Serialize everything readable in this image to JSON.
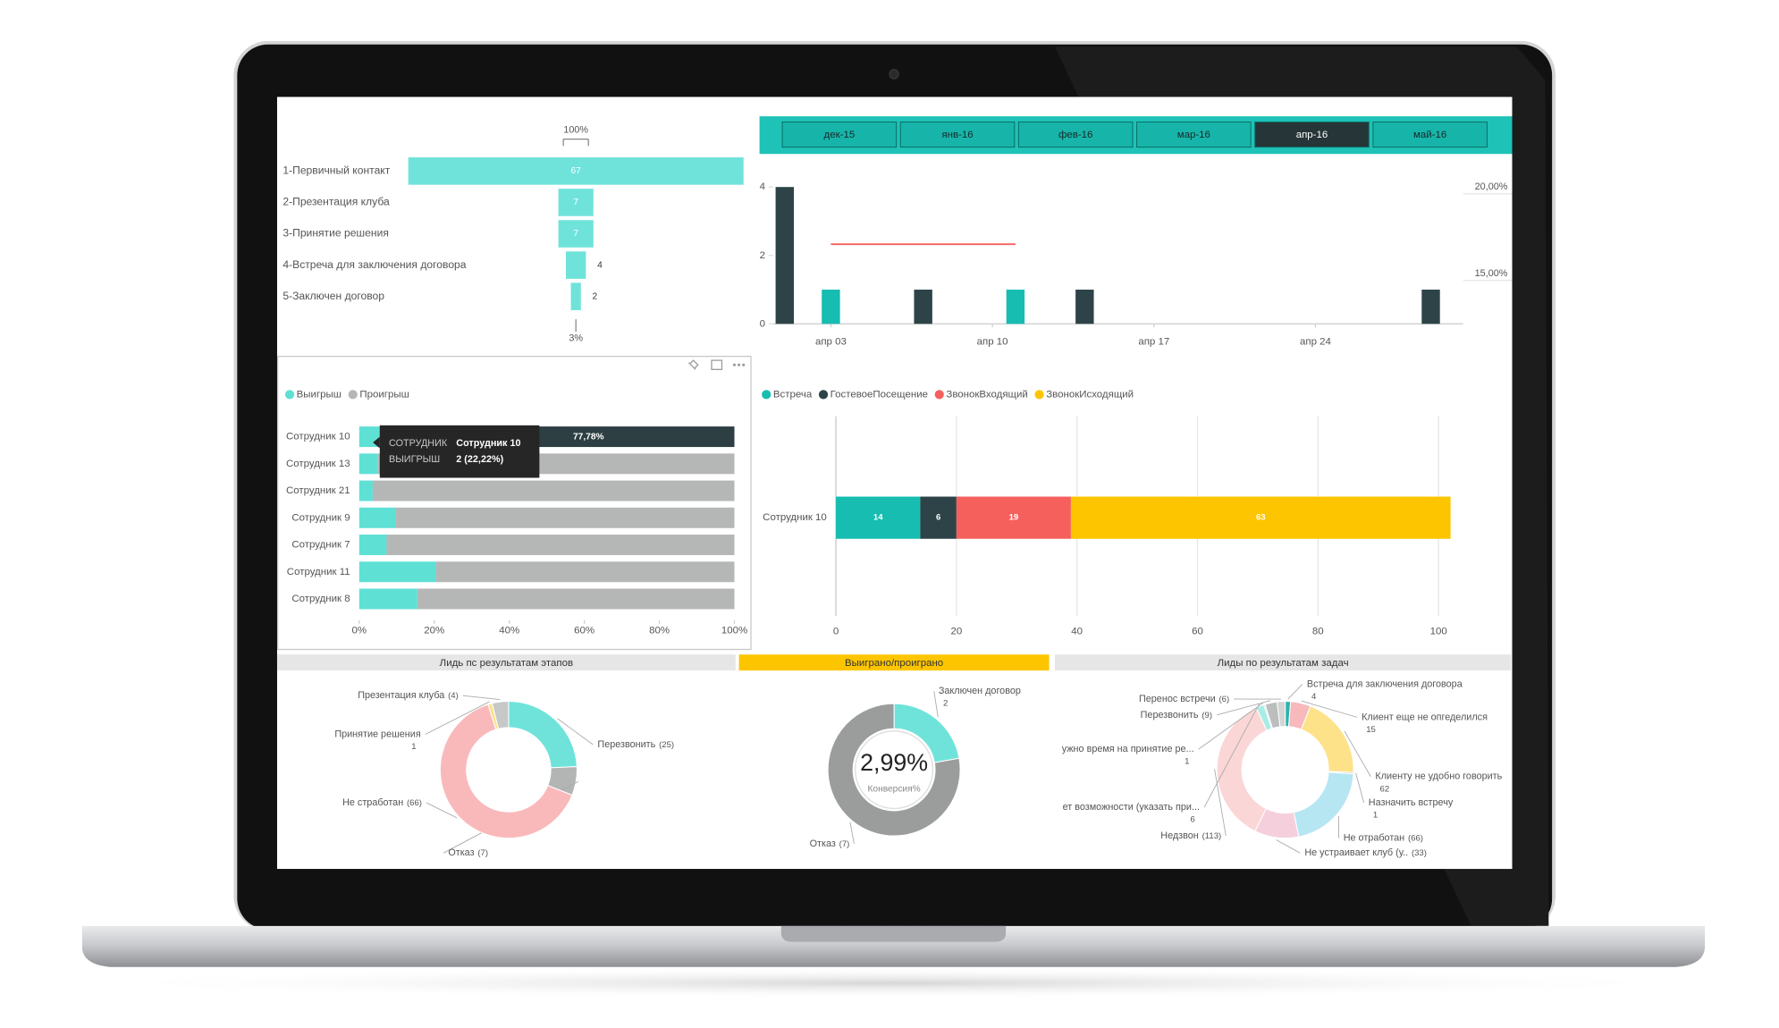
{
  "slicer": {
    "items": [
      "дек-15",
      "янв-16",
      "фев-16",
      "мар-16",
      "апр-16",
      "май-16"
    ],
    "selected": 4,
    "background": "#1ec2b6",
    "color": "#17b5a9",
    "selected_color": "#263538"
  },
  "tooltip": {
    "rows": [
      {
        "label": "СОТРУДНИК",
        "value": "Сотрудник 10"
      },
      {
        "label": "ВЫИГРЫШ",
        "value": "2 (22,22%)"
      }
    ]
  },
  "chart_data": [
    {
      "type": "funnel",
      "categories": [
        "1-Первичный контакт",
        "2-Презентация клуба",
        "3-Принятие решения",
        "4-Встреча для заключения договора",
        "5-Заключен договор"
      ],
      "values": [
        67,
        7,
        7,
        4,
        2
      ],
      "color": "#6fe3da",
      "top_label": {
        "value": 100,
        "label": "100%"
      },
      "bottom_label": {
        "value": 3,
        "label": "3%"
      }
    },
    {
      "type": "combo",
      "xlim": [
        0.5,
        30.4
      ],
      "xticks": [
        {
          "value": 3,
          "label": "апр 03"
        },
        {
          "value": 10,
          "label": "апр 10"
        },
        {
          "value": 17,
          "label": "апр 17"
        },
        {
          "value": 24,
          "label": "апр 24"
        }
      ],
      "ylim": [
        0,
        4
      ],
      "yticks": [
        0,
        2,
        4
      ],
      "y2lim": [
        12.1,
        20
      ],
      "y2ticks": [
        {
          "value": 15,
          "label": "15,00%"
        },
        {
          "value": 20,
          "label": "20,00%"
        }
      ],
      "series": [
        {
          "type": "bar",
          "color": "#2d4347",
          "x": [
            1,
            7,
            14,
            29
          ],
          "values": [
            4,
            1,
            1,
            1
          ]
        },
        {
          "type": "bar",
          "color": "#17bdb1",
          "x": [
            3,
            11
          ],
          "values": [
            1,
            1
          ]
        },
        {
          "type": "line",
          "axis": "y2",
          "color": "#f5605d",
          "x": [
            3,
            11
          ],
          "values": [
            16.7,
            16.7
          ]
        }
      ]
    },
    {
      "type": "stacked_barh",
      "categories": [
        "Сотрудник 10",
        "Сотрудник 13",
        "Сотрудник 21",
        "Сотрудник 9",
        "Сотрудник 7",
        "Сотрудник 11",
        "Сотрудник 8"
      ],
      "xlim": [
        0,
        100
      ],
      "xticks": [
        {
          "value": 0,
          "label": "0%"
        },
        {
          "value": 20,
          "label": "20%"
        },
        {
          "value": 40,
          "label": "40%"
        },
        {
          "value": 60,
          "label": "60%"
        },
        {
          "value": 80,
          "label": "80%"
        },
        {
          "value": 100,
          "label": "100%"
        }
      ],
      "grid": false,
      "data_labels": false,
      "series": [
        {
          "name": "Выигрыш",
          "color": "#5fe0d5",
          "values": [
            22.22,
            5,
            3.6,
            9.7,
            7.3,
            20.4,
            15.5
          ]
        },
        {
          "name": "Проигрыш",
          "color": "#b5b7b7",
          "values": [
            77.78,
            95,
            96.4,
            90.3,
            92.7,
            79.6,
            84.5
          ],
          "value_labels": [
            "77,78%",
            null,
            null,
            null,
            null,
            null,
            null
          ],
          "highlight": {
            "index": 0,
            "color": "#2d3f42"
          }
        }
      ]
    },
    {
      "type": "stacked_barh",
      "categories": [
        "Сотрудник 10"
      ],
      "xlim": [
        0,
        102
      ],
      "xticks": [
        0,
        20,
        40,
        60,
        80,
        100
      ],
      "grid": true,
      "data_labels": true,
      "series": [
        {
          "name": "Встреча",
          "color": "#17bdb1",
          "values": [
            14
          ]
        },
        {
          "name": "ГостевоеПосещение",
          "color": "#2d4347",
          "values": [
            6
          ]
        },
        {
          "name": "ЗвонокВходящий",
          "color": "#f5605d",
          "values": [
            19
          ]
        },
        {
          "name": "ЗвонокИсходящий",
          "color": "#fdc500",
          "values": [
            63
          ]
        }
      ]
    },
    {
      "type": "donut",
      "title": "Лидь пс результатам этапов",
      "header_color": "#e6e6e6",
      "categories": [
        "Перезвонить",
        "Отказ",
        "Не стработан",
        "Принятие решения",
        "Презентация клуба"
      ],
      "values": [
        25,
        7,
        66,
        1,
        4
      ],
      "value_labels": [
        "(25)",
        "(7)",
        "(66)",
        "1",
        "(4)"
      ],
      "colors": [
        "#6fe3da",
        "#b3b5b5",
        "#f9b9bb",
        "#fde28a",
        "#c7c9c9"
      ]
    },
    {
      "type": "donut",
      "title": "Выиграно/проиграно",
      "header_color": "#fdc500",
      "categories": [
        "Заключен договор",
        "Отказ"
      ],
      "values": [
        2,
        7
      ],
      "value_labels": [
        "2",
        "(7)"
      ],
      "colors": [
        "#6fe3da",
        "#9b9d9d"
      ],
      "kpi": 2.99,
      "kpi_label": "2,99%",
      "kpi_subtitle": "Конверсия%"
    },
    {
      "type": "donut",
      "title": "Лиды по результатам задач",
      "header_color": "#e6e6e6",
      "categories": [
        "Встреча для заключения договора",
        "Клиент еще не опгеделился",
        "Клиенту не удобно говорить",
        "Назначить встречу",
        "Не отработан",
        "Не устраивает клуб (у..",
        "Недзвон",
        "ет возможности (указать при...",
        "ужно время на принятие ре...",
        "Перезвонить",
        "Перенос встречи"
      ],
      "values": [
        4,
        15,
        62,
        1,
        66,
        33,
        113,
        6,
        1,
        9,
        6
      ],
      "value_labels": [
        "4",
        "15",
        "62",
        "1",
        "(66)",
        "(33)",
        "(113)",
        "6",
        "1",
        "(9)",
        "(6)"
      ],
      "colors": [
        "#2bb5ad",
        "#f8b9bc",
        "#fde28a",
        "#b0b3b3",
        "#b7e6f3",
        "#f5d0dc",
        "#fbd6d6",
        "#a8ece6",
        "#c5c7c7",
        "#bcbebe",
        "#d3d5d5"
      ]
    }
  ]
}
